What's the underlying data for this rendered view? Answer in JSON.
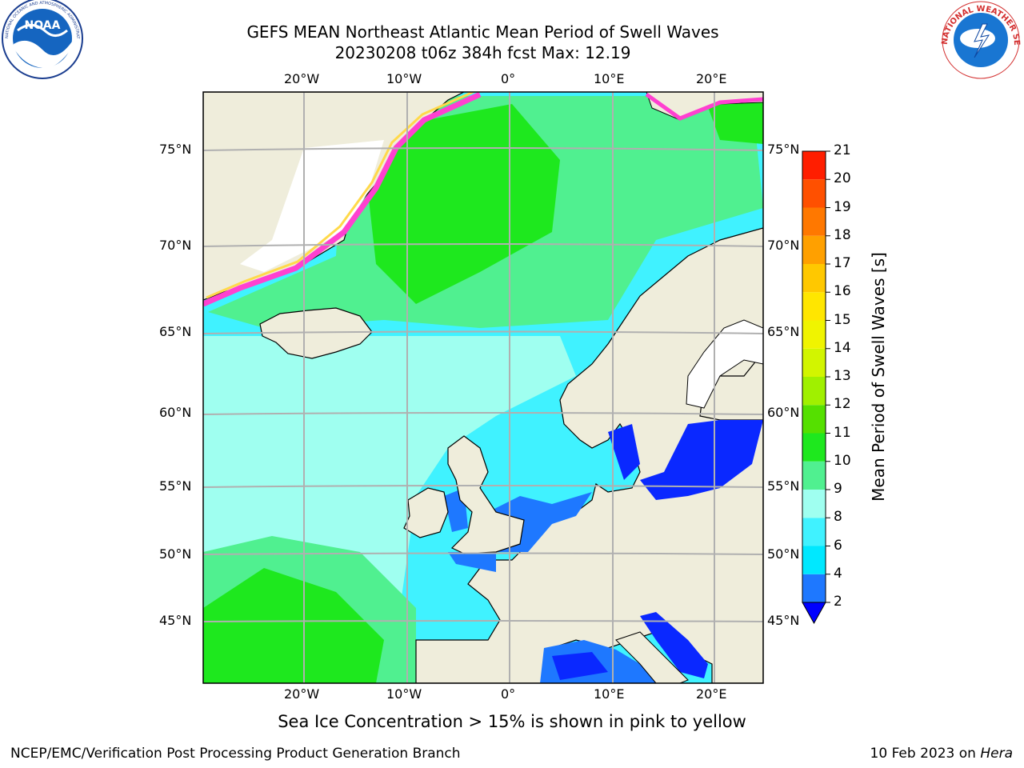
{
  "title": {
    "line1": "GEFS MEAN Northeast Atlantic Mean Period of Swell Waves",
    "line2": "20230208 t06z 384h fcst   Max: 12.19"
  },
  "map": {
    "lon_labels": [
      "20°W",
      "10°W",
      "0°",
      "10°E",
      "20°E"
    ],
    "lat_labels": [
      "45°N",
      "50°N",
      "55°N",
      "60°N",
      "65°N",
      "70°N",
      "75°N"
    ],
    "projection": "polar stereographic",
    "land_color": "#efeddb",
    "grid_color": "#b0b0b0"
  },
  "colorbar": {
    "label": "Mean Period of Swell Waves [s]",
    "ticks": [
      "2",
      "4",
      "6",
      "8",
      "9",
      "10",
      "11",
      "12",
      "13",
      "14",
      "15",
      "16",
      "17",
      "18",
      "19",
      "20",
      "21"
    ],
    "colors": [
      "#0a28ff",
      "#1e78ff",
      "#00e8ff",
      "#40f2ff",
      "#9ffff0",
      "#50f090",
      "#1ee81e",
      "#55e000",
      "#a0f000",
      "#d2f500",
      "#f0f400",
      "#ffe600",
      "#ffc800",
      "#ffa000",
      "#ff7800",
      "#ff5000",
      "#ff1e00"
    ],
    "under_color": "#0000ff"
  },
  "note": "Sea Ice Concentration > 15% is shown in pink to yellow",
  "footer": {
    "left": "NCEP/EMC/Verification Post Processing Product Generation Branch",
    "right_date": "10 Feb 2023 on ",
    "right_host": "Hera"
  },
  "logos": {
    "noaa_text": "NOAA",
    "nws_text": "NATIONAL WEATHER SERVICE"
  }
}
